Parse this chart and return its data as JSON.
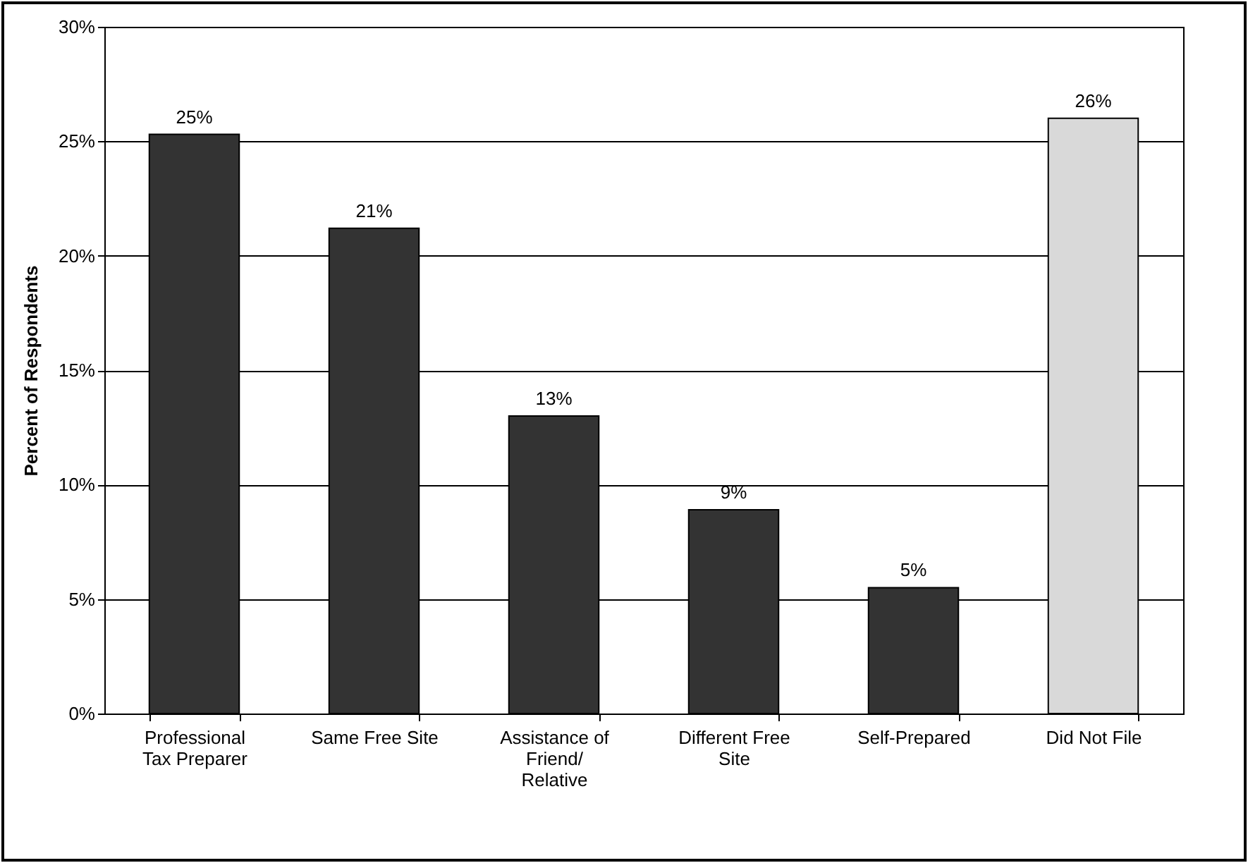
{
  "chart_data": {
    "type": "bar",
    "ylabel": "Percent of Respondents",
    "categories": [
      "Professional Tax Preparer",
      "Same Free Site",
      "Assistance of Friend/Relative",
      "Different Free Site",
      "Self-Prepared",
      "Did Not File"
    ],
    "values": [
      25.3,
      21.2,
      13.0,
      8.9,
      5.5,
      26.0
    ],
    "value_labels": [
      "25%",
      "21%",
      "13%",
      "9%",
      "5%",
      "26%"
    ],
    "colors": [
      "#333333",
      "#333333",
      "#333333",
      "#333333",
      "#333333",
      "#d9d9d9"
    ],
    "ylim": [
      0,
      30
    ],
    "yticks": [
      {
        "value": 0,
        "label": "0%"
      },
      {
        "value": 5,
        "label": "5%"
      },
      {
        "value": 10,
        "label": "10%"
      },
      {
        "value": 15,
        "label": "15%"
      },
      {
        "value": 20,
        "label": "20%"
      },
      {
        "value": 25,
        "label": "25%"
      },
      {
        "value": 30,
        "label": "30%"
      }
    ],
    "grid": "y"
  }
}
